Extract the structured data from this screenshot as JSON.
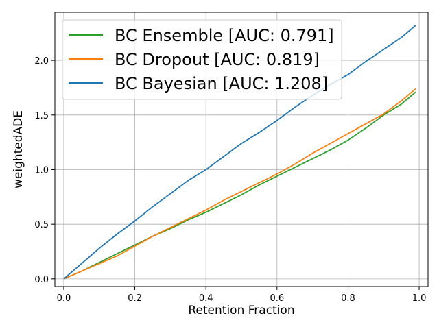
{
  "chart_data": {
    "type": "line",
    "title": "",
    "xlabel": "Retention Fraction",
    "ylabel": "weightedADE",
    "xlim": [
      -0.025,
      1.025
    ],
    "ylim": [
      -0.07,
      2.44
    ],
    "xticks": [
      0.0,
      0.2,
      0.4,
      0.6,
      0.8,
      1.0
    ],
    "xtick_labels": [
      "0.0",
      "0.2",
      "0.4",
      "0.6",
      "0.8",
      "1.0"
    ],
    "yticks": [
      0.0,
      0.5,
      1.0,
      1.5,
      2.0
    ],
    "ytick_labels": [
      "0.0",
      "0.5",
      "1.0",
      "1.5",
      "2.0"
    ],
    "grid": true,
    "legend_position": "upper-left",
    "series": [
      {
        "name": "BC Ensemble [AUC: 0.791]",
        "color": "#2ca02c",
        "x": [
          0.0,
          0.05,
          0.1,
          0.15,
          0.2,
          0.25,
          0.3,
          0.35,
          0.4,
          0.45,
          0.5,
          0.55,
          0.6,
          0.65,
          0.7,
          0.75,
          0.8,
          0.85,
          0.9,
          0.95,
          0.99
        ],
        "y": [
          0.0,
          0.07,
          0.15,
          0.23,
          0.31,
          0.39,
          0.46,
          0.54,
          0.61,
          0.69,
          0.77,
          0.86,
          0.94,
          1.02,
          1.1,
          1.18,
          1.27,
          1.38,
          1.5,
          1.6,
          1.71
        ]
      },
      {
        "name": "BC Dropout [AUC: 0.819]",
        "color": "#ff7f0e",
        "x": [
          0.0,
          0.05,
          0.1,
          0.15,
          0.2,
          0.25,
          0.3,
          0.35,
          0.4,
          0.45,
          0.5,
          0.55,
          0.6,
          0.65,
          0.7,
          0.75,
          0.8,
          0.85,
          0.9,
          0.95,
          0.99
        ],
        "y": [
          0.0,
          0.07,
          0.14,
          0.21,
          0.3,
          0.39,
          0.47,
          0.55,
          0.63,
          0.72,
          0.8,
          0.88,
          0.96,
          1.05,
          1.15,
          1.24,
          1.33,
          1.42,
          1.51,
          1.63,
          1.74
        ]
      },
      {
        "name": "BC Bayesian [AUC: 1.208]",
        "color": "#1f77b4",
        "x": [
          0.0,
          0.05,
          0.1,
          0.15,
          0.2,
          0.25,
          0.3,
          0.35,
          0.4,
          0.45,
          0.5,
          0.55,
          0.6,
          0.65,
          0.7,
          0.75,
          0.8,
          0.85,
          0.9,
          0.95,
          0.99
        ],
        "y": [
          0.0,
          0.14,
          0.28,
          0.41,
          0.53,
          0.66,
          0.78,
          0.9,
          1.0,
          1.12,
          1.24,
          1.34,
          1.45,
          1.57,
          1.68,
          1.78,
          1.87,
          1.99,
          2.1,
          2.21,
          2.32
        ]
      }
    ]
  }
}
